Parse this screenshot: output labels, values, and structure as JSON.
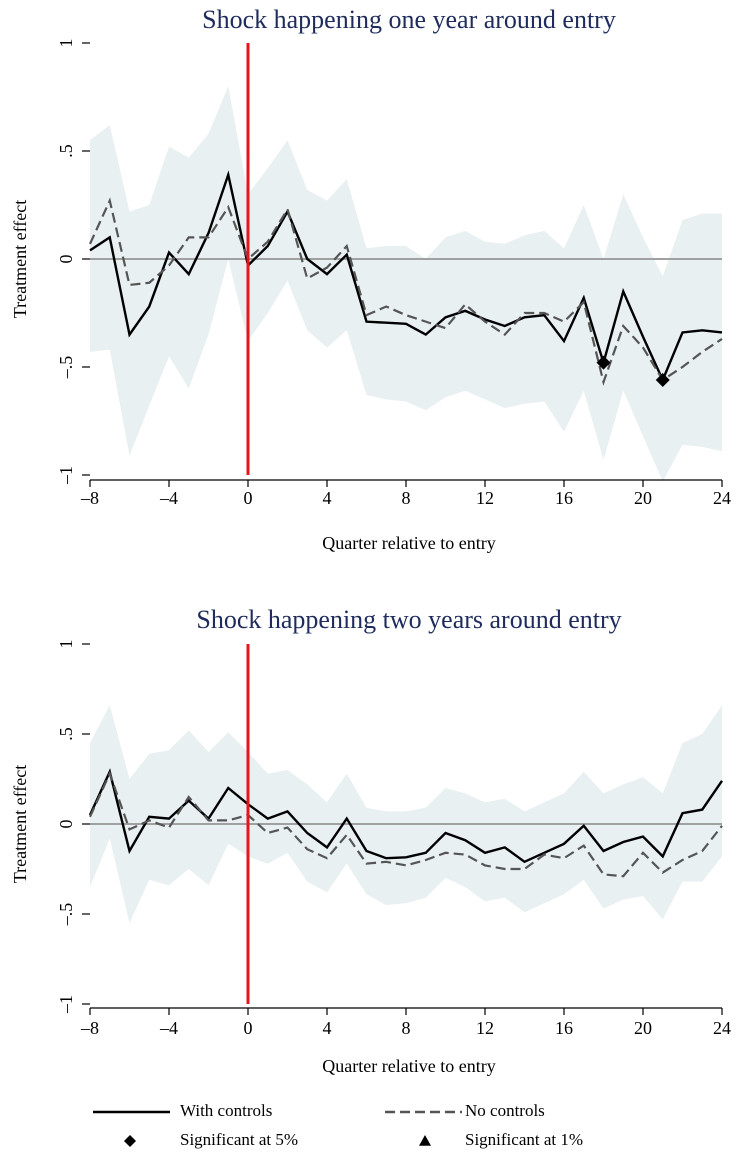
{
  "chart_data": [
    {
      "type": "line",
      "title": "Shock happening one year around entry",
      "x_label": "Quarter relative to entry",
      "y_label": "Treatment effect",
      "x": [
        -8,
        -7,
        -6,
        -5,
        -4,
        -3,
        -2,
        -1,
        0,
        1,
        2,
        3,
        4,
        5,
        6,
        7,
        8,
        9,
        10,
        11,
        12,
        13,
        14,
        15,
        16,
        17,
        18,
        19,
        20,
        21,
        22,
        23,
        24
      ],
      "series": [
        {
          "name": "With controls",
          "color": "#000000",
          "dash": "solid",
          "values": [
            0.04,
            0.1,
            -0.35,
            -0.22,
            0.03,
            -0.07,
            0.12,
            0.39,
            -0.03,
            0.06,
            0.22,
            0.0,
            -0.07,
            0.02,
            -0.29,
            -0.295,
            -0.3,
            -0.35,
            -0.27,
            -0.24,
            -0.28,
            -0.31,
            -0.27,
            -0.26,
            -0.38,
            -0.18,
            -0.48,
            -0.15,
            -0.36,
            -0.56,
            -0.34,
            -0.33,
            -0.34
          ]
        },
        {
          "name": "No controls",
          "color": "#555555",
          "dash": "dashed",
          "values": [
            0.07,
            0.27,
            -0.12,
            -0.11,
            -0.03,
            0.1,
            0.1,
            0.24,
            0.0,
            0.08,
            0.23,
            -0.09,
            -0.04,
            0.06,
            -0.26,
            -0.22,
            -0.26,
            -0.29,
            -0.32,
            -0.21,
            -0.29,
            -0.35,
            -0.25,
            -0.25,
            -0.29,
            -0.2,
            -0.57,
            -0.31,
            -0.41,
            -0.56,
            -0.5,
            -0.43,
            -0.37
          ]
        }
      ],
      "band": {
        "color": "#e9f0f2",
        "upper": [
          0.55,
          0.62,
          0.22,
          0.25,
          0.52,
          0.47,
          0.58,
          0.8,
          0.3,
          0.42,
          0.55,
          0.32,
          0.27,
          0.37,
          0.05,
          0.06,
          0.06,
          0.0,
          0.1,
          0.13,
          0.08,
          0.07,
          0.11,
          0.13,
          0.05,
          0.25,
          0.0,
          0.3,
          0.1,
          -0.08,
          0.18,
          0.21,
          0.21
        ],
        "lower": [
          -0.43,
          -0.42,
          -0.91,
          -0.68,
          -0.45,
          -0.6,
          -0.35,
          0.0,
          -0.38,
          -0.25,
          -0.1,
          -0.33,
          -0.41,
          -0.33,
          -0.63,
          -0.65,
          -0.66,
          -0.7,
          -0.64,
          -0.61,
          -0.65,
          -0.69,
          -0.67,
          -0.66,
          -0.8,
          -0.61,
          -0.93,
          -0.61,
          -0.82,
          -1.03,
          -0.86,
          -0.87,
          -0.89
        ]
      },
      "markers": [
        {
          "name": "Significant at 5%",
          "shape": "diamond",
          "x": [
            18,
            21
          ],
          "values": [
            -0.48,
            -0.56
          ]
        },
        {
          "name": "Significant at 1%",
          "shape": "triangle",
          "x": [],
          "values": []
        }
      ],
      "vline": 0,
      "vline_color": "#e8141b",
      "hline": 0,
      "hline_color": "#a0a0a0",
      "xlim": [
        -8,
        24
      ],
      "xticks": [
        {
          "value": -8,
          "label": "–8"
        },
        {
          "value": -4,
          "label": "–4"
        },
        0,
        4,
        8,
        12,
        16,
        20,
        24
      ],
      "ylim": [
        -1,
        1
      ],
      "yticks": [
        {
          "value": -1,
          "label": "–1"
        },
        {
          "value": -0.5,
          "label": "–.5"
        },
        0,
        {
          "value": 0.5,
          "label": ".5"
        },
        1
      ]
    },
    {
      "type": "line",
      "title": "Shock happening two years around entry",
      "x_label": "Quarter relative to entry",
      "y_label": "Treatment effect",
      "x": [
        -8,
        -7,
        -6,
        -5,
        -4,
        -3,
        -2,
        -1,
        0,
        1,
        2,
        3,
        4,
        5,
        6,
        7,
        8,
        9,
        10,
        11,
        12,
        13,
        14,
        15,
        16,
        17,
        18,
        19,
        20,
        21,
        22,
        23,
        24
      ],
      "series": [
        {
          "name": "With controls",
          "color": "#000000",
          "dash": "solid",
          "values": [
            0.05,
            0.29,
            -0.15,
            0.04,
            0.03,
            0.13,
            0.03,
            0.2,
            0.11,
            0.03,
            0.07,
            -0.05,
            -0.13,
            0.03,
            -0.15,
            -0.19,
            -0.185,
            -0.16,
            -0.05,
            -0.09,
            -0.16,
            -0.13,
            -0.21,
            -0.16,
            -0.11,
            -0.01,
            -0.15,
            -0.1,
            -0.07,
            -0.18,
            0.06,
            0.08,
            0.24
          ]
        },
        {
          "name": "No controls",
          "color": "#555555",
          "dash": "dashed",
          "values": [
            0.04,
            0.28,
            -0.03,
            0.02,
            -0.02,
            0.15,
            0.02,
            0.02,
            0.05,
            -0.05,
            -0.02,
            -0.14,
            -0.19,
            -0.06,
            -0.22,
            -0.21,
            -0.23,
            -0.2,
            -0.16,
            -0.17,
            -0.23,
            -0.25,
            -0.25,
            -0.17,
            -0.19,
            -0.12,
            -0.28,
            -0.29,
            -0.16,
            -0.27,
            -0.2,
            -0.15,
            -0.01
          ]
        }
      ],
      "band": {
        "color": "#e9f0f2",
        "upper": [
          0.45,
          0.66,
          0.25,
          0.39,
          0.41,
          0.52,
          0.4,
          0.51,
          0.4,
          0.28,
          0.3,
          0.22,
          0.12,
          0.28,
          0.09,
          0.07,
          0.07,
          0.09,
          0.2,
          0.17,
          0.12,
          0.14,
          0.07,
          0.12,
          0.17,
          0.29,
          0.17,
          0.22,
          0.26,
          0.17,
          0.45,
          0.5,
          0.66
        ],
        "lower": [
          -0.35,
          -0.08,
          -0.55,
          -0.31,
          -0.34,
          -0.25,
          -0.34,
          -0.11,
          -0.18,
          -0.22,
          -0.16,
          -0.32,
          -0.38,
          -0.22,
          -0.39,
          -0.45,
          -0.44,
          -0.41,
          -0.3,
          -0.35,
          -0.43,
          -0.41,
          -0.49,
          -0.44,
          -0.39,
          -0.31,
          -0.47,
          -0.42,
          -0.4,
          -0.53,
          -0.32,
          -0.32,
          -0.18
        ]
      },
      "vline": 0,
      "vline_color": "#e8141b",
      "hline": 0,
      "hline_color": "#a0a0a0",
      "xlim": [
        -8,
        24
      ],
      "xticks": [
        {
          "value": -8,
          "label": "–8"
        },
        {
          "value": -4,
          "label": "–4"
        },
        0,
        4,
        8,
        12,
        16,
        20,
        24
      ],
      "ylim": [
        -1,
        1
      ],
      "yticks": [
        {
          "value": -1,
          "label": "–1"
        },
        {
          "value": -0.5,
          "label": "–.5"
        },
        0,
        {
          "value": 0.5,
          "label": ".5"
        },
        1
      ]
    }
  ]
}
